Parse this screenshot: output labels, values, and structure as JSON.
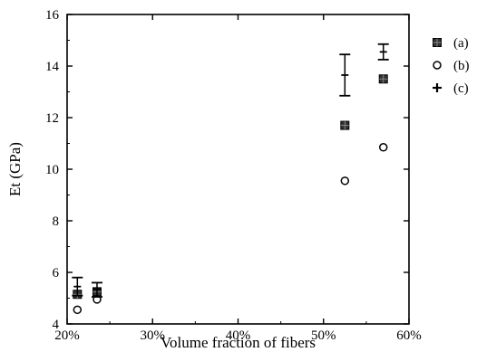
{
  "chart_data": {
    "type": "scatter",
    "title": "",
    "xlabel": "Volume fraction of fibers",
    "ylabel": "Et (GPa)",
    "xlim": [
      20,
      60
    ],
    "ylim": [
      4,
      16
    ],
    "x_ticks": [
      20,
      30,
      40,
      50,
      60
    ],
    "x_tick_labels": [
      "20%",
      "30%",
      "40%",
      "50%",
      "60%"
    ],
    "y_ticks": [
      4,
      6,
      8,
      10,
      12,
      14,
      16
    ],
    "y_tick_labels": [
      "4",
      "6",
      "8",
      "10",
      "12",
      "14",
      "16"
    ],
    "grid": false,
    "legend_position": "right",
    "series": [
      {
        "name": "(a)",
        "marker": "filled-square",
        "points": [
          {
            "x": 21.2,
            "y": 5.15
          },
          {
            "x": 23.5,
            "y": 5.25
          },
          {
            "x": 52.5,
            "y": 11.7
          },
          {
            "x": 57.0,
            "y": 13.5
          }
        ]
      },
      {
        "name": "(b)",
        "marker": "open-circle",
        "points": [
          {
            "x": 21.2,
            "y": 4.55
          },
          {
            "x": 23.5,
            "y": 4.95
          },
          {
            "x": 52.5,
            "y": 9.55
          },
          {
            "x": 57.0,
            "y": 10.85
          }
        ]
      },
      {
        "name": "(c)",
        "marker": "error-bar",
        "points": [
          {
            "x": 21.2,
            "y": 5.45,
            "low": 5.1,
            "high": 5.8
          },
          {
            "x": 23.5,
            "y": 5.35,
            "low": 5.05,
            "high": 5.6
          },
          {
            "x": 52.5,
            "y": 13.65,
            "low": 12.85,
            "high": 14.45
          },
          {
            "x": 57.0,
            "y": 14.55,
            "low": 14.25,
            "high": 14.85
          }
        ]
      }
    ]
  }
}
